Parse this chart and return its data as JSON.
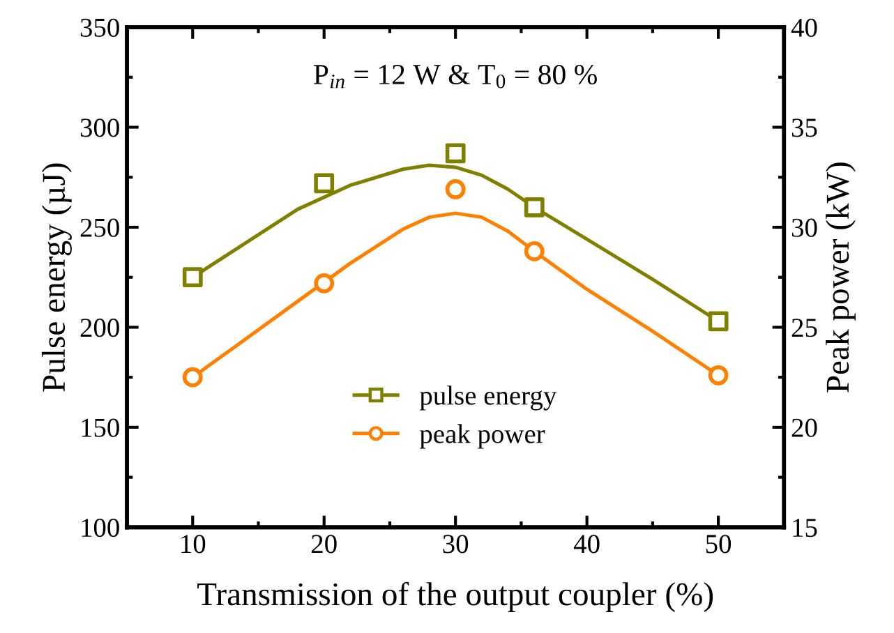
{
  "chart_data": {
    "type": "scatter",
    "xlabel": "Transmission of the output coupler (%)",
    "ylabel": "Pulse energy (µJ)",
    "y2label": "Peak power (kW)",
    "annotations": [
      "P$_{in}$ = 12 W & T$_{0}$ = 80 %"
    ],
    "xlim": [
      5,
      55
    ],
    "xticks": [
      10,
      20,
      30,
      40,
      50
    ],
    "ylim": [
      100,
      350
    ],
    "yticks": [
      100,
      150,
      200,
      250,
      300,
      350
    ],
    "y2lim": [
      15,
      40
    ],
    "y2ticks": [
      15,
      20,
      25,
      30,
      35,
      40
    ],
    "grid": false,
    "legend": "bottom",
    "series": [
      {
        "name": "pulse energy",
        "color": "#808000",
        "marker": "square",
        "x": [
          10,
          20,
          30,
          36,
          50
        ],
        "values": [
          225,
          272,
          287,
          260,
          203
        ]
      },
      {
        "name": "peak power",
        "color": "#ff8000",
        "marker": "circle",
        "axis": "y2",
        "x": [
          10,
          20,
          30,
          36,
          50
        ],
        "values": [
          22.5,
          27.2,
          31.9,
          28.8,
          22.6
        ]
      },
      {
        "type": "line",
        "color": "#808000",
        "line_style": "solid",
        "x": [
          10,
          14,
          18,
          22,
          26,
          28,
          30,
          32,
          34,
          36,
          40,
          45,
          50
        ],
        "values": [
          225,
          242,
          259,
          271,
          279,
          281,
          280,
          276,
          269,
          260,
          244,
          224,
          203
        ]
      },
      {
        "type": "line",
        "color": "#ff8000",
        "line_style": "solid",
        "axis": "y2",
        "x": [
          10,
          14,
          18,
          22,
          26,
          28,
          30,
          32,
          34,
          36,
          40,
          45,
          50
        ],
        "values": [
          22.5,
          24.4,
          26.3,
          28.2,
          29.9,
          30.5,
          30.7,
          30.5,
          29.8,
          28.8,
          26.9,
          24.8,
          22.6
        ]
      }
    ]
  }
}
